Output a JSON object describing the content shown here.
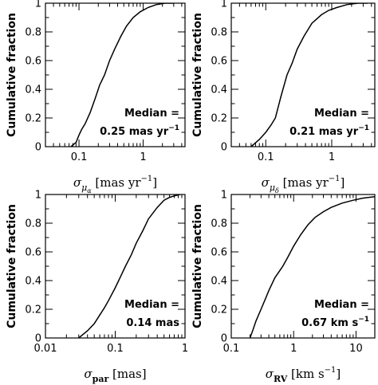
{
  "chart_data": [
    {
      "type": "line",
      "ylabel": "Cumulative fraction",
      "x_label_symbol": "σ",
      "x_label_sub": "μ",
      "x_label_subsub": "α",
      "x_label_units": "[mas yr",
      "x_label_units_sup": "−1",
      "x_label_units_close": "]",
      "xscale": "log",
      "xlim": [
        0.03,
        4.5
      ],
      "ylim": [
        0,
        1
      ],
      "xticks": [
        {
          "v": 0.1,
          "label": "0.1"
        },
        {
          "v": 1,
          "label": "1"
        }
      ],
      "yticks": [
        {
          "v": 0,
          "label": "0"
        },
        {
          "v": 0.2,
          "label": "0.2"
        },
        {
          "v": 0.4,
          "label": "0.4"
        },
        {
          "v": 0.6,
          "label": "0.6"
        },
        {
          "v": 0.8,
          "label": "0.8"
        },
        {
          "v": 1,
          "label": "1"
        }
      ],
      "annotation_line1": "Median =",
      "annotation_line2": "0.25 mas yr",
      "annotation_line2_sup": "−1",
      "series": [
        {
          "x": [
            0.075,
            0.09,
            0.1,
            0.11,
            0.125,
            0.15,
            0.18,
            0.21,
            0.25,
            0.3,
            0.36,
            0.45,
            0.55,
            0.7,
            0.9,
            1.2,
            1.6,
            2.2,
            3.0
          ],
          "y": [
            0.0,
            0.03,
            0.08,
            0.12,
            0.16,
            0.24,
            0.34,
            0.43,
            0.5,
            0.6,
            0.68,
            0.77,
            0.84,
            0.9,
            0.94,
            0.97,
            0.99,
            1.0,
            1.0
          ]
        }
      ]
    },
    {
      "type": "line",
      "ylabel": "Cumulative fraction",
      "x_label_symbol": "σ",
      "x_label_sub": "μ",
      "x_label_subsub": "δ",
      "x_label_units": "[mas yr",
      "x_label_units_sup": "−1",
      "x_label_units_close": "]",
      "xscale": "log",
      "xlim": [
        0.03,
        4.5
      ],
      "ylim": [
        0,
        1
      ],
      "xticks": [
        {
          "v": 0.1,
          "label": "0.1"
        },
        {
          "v": 1,
          "label": "1"
        }
      ],
      "yticks": [
        {
          "v": 0,
          "label": "0"
        },
        {
          "v": 0.2,
          "label": "0.2"
        },
        {
          "v": 0.4,
          "label": "0.4"
        },
        {
          "v": 0.6,
          "label": "0.6"
        },
        {
          "v": 0.8,
          "label": "0.8"
        },
        {
          "v": 1,
          "label": "1"
        }
      ],
      "annotation_line1": "Median =",
      "annotation_line2": "0.21 mas yr",
      "annotation_line2_sup": "−1",
      "series": [
        {
          "x": [
            0.06,
            0.08,
            0.1,
            0.12,
            0.14,
            0.17,
            0.21,
            0.25,
            0.3,
            0.38,
            0.5,
            0.7,
            0.9,
            1.2,
            1.7,
            2.5,
            3.5
          ],
          "y": [
            0.0,
            0.05,
            0.1,
            0.15,
            0.2,
            0.35,
            0.5,
            0.58,
            0.68,
            0.77,
            0.86,
            0.92,
            0.95,
            0.97,
            0.99,
            1.0,
            1.0
          ]
        }
      ]
    },
    {
      "type": "line",
      "ylabel": "Cumulative fraction",
      "x_label_symbol": "σ",
      "x_label_sub": "par",
      "x_label_subsub": "",
      "x_label_units": "[mas]",
      "x_label_units_sup": "",
      "x_label_units_close": "",
      "xscale": "log",
      "xlim": [
        0.01,
        1
      ],
      "ylim": [
        0,
        1
      ],
      "xticks": [
        {
          "v": 0.01,
          "label": "0.01"
        },
        {
          "v": 0.1,
          "label": "0.1"
        },
        {
          "v": 1,
          "label": "1"
        }
      ],
      "yticks": [
        {
          "v": 0,
          "label": "0"
        },
        {
          "v": 0.2,
          "label": "0.2"
        },
        {
          "v": 0.4,
          "label": "0.4"
        },
        {
          "v": 0.6,
          "label": "0.6"
        },
        {
          "v": 0.8,
          "label": "0.8"
        },
        {
          "v": 1,
          "label": "1"
        }
      ],
      "annotation_line1": "Median =",
      "annotation_line2": "0.14 mas",
      "annotation_line2_sup": "",
      "series": [
        {
          "x": [
            0.03,
            0.04,
            0.05,
            0.06,
            0.07,
            0.08,
            0.1,
            0.12,
            0.14,
            0.17,
            0.2,
            0.25,
            0.3,
            0.4,
            0.5,
            0.6,
            0.7,
            0.85
          ],
          "y": [
            0.0,
            0.05,
            0.1,
            0.16,
            0.21,
            0.26,
            0.35,
            0.43,
            0.5,
            0.58,
            0.66,
            0.75,
            0.83,
            0.91,
            0.96,
            0.98,
            0.99,
            1.0
          ]
        }
      ]
    },
    {
      "type": "line",
      "ylabel": "Cumulative fraction",
      "x_label_symbol": "σ",
      "x_label_sub": "RV",
      "x_label_subsub": "",
      "x_label_units": "[km s",
      "x_label_units_sup": "−1",
      "x_label_units_close": "]",
      "xscale": "log",
      "xlim": [
        0.1,
        20
      ],
      "ylim": [
        0,
        1
      ],
      "xticks": [
        {
          "v": 0.1,
          "label": "0.1"
        },
        {
          "v": 1,
          "label": "1"
        },
        {
          "v": 10,
          "label": "10"
        }
      ],
      "yticks": [
        {
          "v": 0,
          "label": "0"
        },
        {
          "v": 0.2,
          "label": "0.2"
        },
        {
          "v": 0.4,
          "label": "0.4"
        },
        {
          "v": 0.6,
          "label": "0.6"
        },
        {
          "v": 0.8,
          "label": "0.8"
        },
        {
          "v": 1,
          "label": "1"
        }
      ],
      "annotation_line1": "Median =",
      "annotation_line2": "0.67 km s",
      "annotation_line2_sup": "−1",
      "series": [
        {
          "x": [
            0.2,
            0.22,
            0.25,
            0.3,
            0.35,
            0.4,
            0.5,
            0.6,
            0.67,
            0.8,
            1.0,
            1.3,
            1.7,
            2.2,
            3.0,
            4.0,
            6.0,
            9.0,
            13.0,
            20.0
          ],
          "y": [
            0.0,
            0.05,
            0.12,
            0.2,
            0.27,
            0.33,
            0.42,
            0.47,
            0.5,
            0.56,
            0.64,
            0.72,
            0.79,
            0.84,
            0.88,
            0.91,
            0.94,
            0.96,
            0.975,
            0.985
          ]
        }
      ]
    }
  ]
}
